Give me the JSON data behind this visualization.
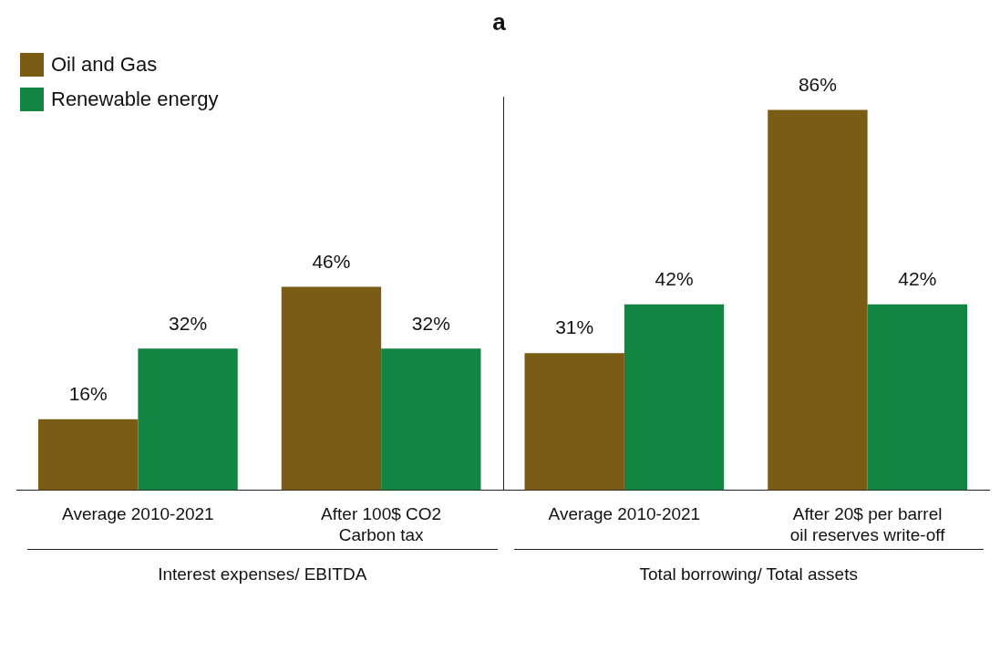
{
  "chart_data": {
    "type": "bar",
    "title": "a",
    "categories": [
      "Average 2010-2021",
      "After 100$ CO2 Carbon tax",
      "Average 2010-2021",
      "After 20$ per barrel oil reserves write-off"
    ],
    "series": [
      {
        "name": "Oil and Gas",
        "color": "#7b5c14",
        "values": [
          16,
          46,
          31,
          86
        ],
        "value_labels": [
          "16%",
          "46%",
          "31%",
          "86%"
        ]
      },
      {
        "name": "Renewable energy",
        "color": "#118541",
        "values": [
          32,
          32,
          42,
          42
        ],
        "value_labels": [
          "32%",
          "32%",
          "42%",
          "42%"
        ]
      }
    ],
    "relative": false,
    "grid": false,
    "legend": "top left",
    "annotations": [
      "Interest expenses/ EBITDA",
      "Total borrowing/ Total assets"
    ]
  }
}
